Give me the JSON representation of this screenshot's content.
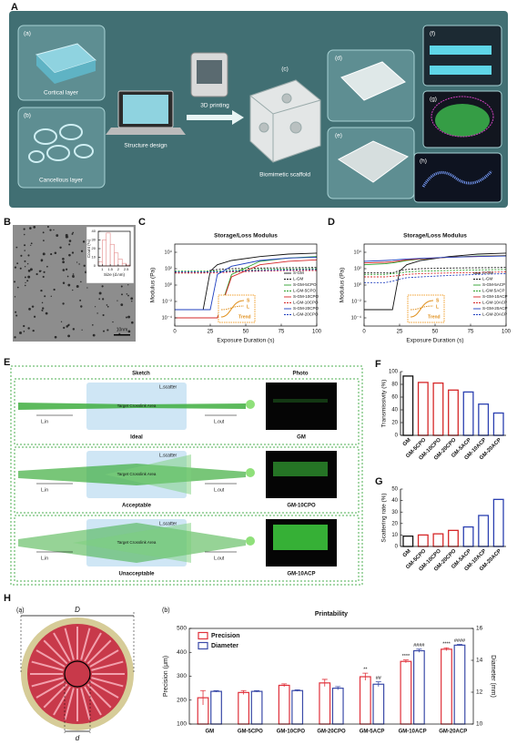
{
  "panel_a": {
    "label": "A",
    "items": [
      {
        "tag": "(a)",
        "caption": "Cortical layer"
      },
      {
        "tag": "(b)",
        "caption": "Cancellous layer"
      }
    ],
    "design": "Structure design",
    "printing": "3D printing",
    "scaffold_tag": "(c)",
    "scaffold": "Biomimetic scaffold",
    "views": [
      "(d)",
      "(e)",
      "(f)",
      "(g)",
      "(h)"
    ]
  },
  "panel_b": {
    "label": "B",
    "scale_bar": "10nm"
  },
  "panel_e": {
    "label": "E",
    "sketch": "Sketch",
    "photo": "Photo",
    "l_in": "L.in",
    "l_out": "L.out",
    "l_scatter": "L.scatter",
    "area": "Target Crosslink Area",
    "rows": [
      {
        "name": "Ideal",
        "sample": "GM"
      },
      {
        "name": "Acceptable",
        "sample": "GM-10CPO"
      },
      {
        "name": "Unacceptable",
        "sample": "GM-10ACP"
      }
    ]
  },
  "panel_h": {
    "label": "H",
    "image_tag": "(a)",
    "outer": "D",
    "inner": "d"
  },
  "chart_data": [
    {
      "type": "histogram",
      "xlabel": "Size (d.nm)",
      "ylabel": "Count (%)",
      "bins": [
        0.75,
        1,
        1.25,
        1.5,
        1.75,
        2,
        2.25,
        2.5,
        2.75
      ],
      "values": [
        5,
        30,
        38,
        25,
        15,
        8,
        3,
        1
      ],
      "color": "#e38a8a",
      "xlim": [
        0.75,
        2.75
      ],
      "xticks": [
        1,
        1.5,
        2,
        2.5
      ],
      "ylim": [
        0,
        40
      ],
      "yticks": [
        0,
        10,
        20,
        30,
        40
      ]
    },
    {
      "type": "line",
      "label": "C",
      "title": "Storage/Loss Modulus",
      "xlabel": "Exposure Duration (s)",
      "ylabel": "Modulus (Pa)",
      "log_y": true,
      "legend": "lower right",
      "inset": {
        "s": "S",
        "l": "L",
        "trend": "Trend"
      },
      "x": [
        0,
        15,
        20,
        25,
        30,
        40,
        60,
        80,
        100
      ],
      "series": [
        {
          "name": "S-GM",
          "color": "#111111",
          "dashed": false,
          "values": [
            0.001,
            0.001,
            0.001,
            50,
            300,
            1000,
            3000,
            6000,
            8000
          ]
        },
        {
          "name": "L-GM",
          "color": "#111111",
          "dashed": true,
          "values": [
            30,
            30,
            30,
            60,
            80,
            100,
            120,
            130,
            140
          ]
        },
        {
          "name": "S-GM-5CPO",
          "color": "#2ca02c",
          "dashed": false,
          "values": [
            0.0001,
            0.0001,
            0.0001,
            0.0001,
            0.0001,
            20,
            800,
            2000,
            3000
          ]
        },
        {
          "name": "L-GM-5CPO",
          "color": "#2ca02c",
          "dashed": true,
          "values": [
            50,
            50,
            50,
            50,
            50,
            60,
            80,
            90,
            100
          ]
        },
        {
          "name": "S-GM-10CPO",
          "color": "#d62728",
          "dashed": false,
          "values": [
            0.0001,
            0.0001,
            0.0001,
            0.0001,
            0.0001,
            10,
            300,
            800,
            1200
          ]
        },
        {
          "name": "L-GM-10CPO",
          "color": "#d62728",
          "dashed": true,
          "values": [
            30,
            30,
            30,
            30,
            30,
            40,
            50,
            60,
            60
          ]
        },
        {
          "name": "S-GM-20CPO",
          "color": "#1f3fbf",
          "dashed": false,
          "values": [
            0.001,
            0.001,
            0.001,
            0.001,
            20,
            200,
            1000,
            2000,
            2500
          ]
        },
        {
          "name": "L-GM-20CPO",
          "color": "#1f3fbf",
          "dashed": true,
          "values": [
            40,
            40,
            40,
            40,
            40,
            50,
            60,
            70,
            80
          ]
        }
      ],
      "xlim": [
        0,
        100
      ],
      "xticks": [
        0,
        25,
        50,
        75,
        100
      ],
      "ylim": [
        1e-05,
        100000
      ],
      "yticks": [
        {
          "value": 0.0001,
          "label": "10⁻⁴"
        },
        {
          "value": 0.01,
          "label": "10⁻²"
        },
        {
          "value": 1,
          "label": "10⁰"
        },
        {
          "value": 100,
          "label": "10²"
        },
        {
          "value": 10000,
          "label": "10⁴"
        }
      ]
    },
    {
      "type": "line",
      "label": "D",
      "title": "Storage/Loss Modulus",
      "xlabel": "Exposure Duration (s)",
      "ylabel": "Modulus (Pa)",
      "log_y": true,
      "legend": "lower right",
      "inset": {
        "s": "S",
        "l": "L",
        "trend": "Trend"
      },
      "x": [
        0,
        15,
        20,
        25,
        30,
        40,
        60,
        80,
        100
      ],
      "series": [
        {
          "name": "S-GM",
          "color": "#111111",
          "dashed": false,
          "values": [
            0.001,
            0.001,
            0.001,
            50,
            300,
            1000,
            3000,
            6000,
            8000
          ]
        },
        {
          "name": "L-GM",
          "color": "#111111",
          "dashed": true,
          "values": [
            30,
            30,
            30,
            60,
            80,
            100,
            120,
            130,
            140
          ]
        },
        {
          "name": "S-GM-5ACP",
          "color": "#2ca02c",
          "dashed": false,
          "values": [
            300,
            400,
            500,
            700,
            1000,
            1500,
            2500,
            3500,
            4000
          ]
        },
        {
          "name": "L-GM-5ACP",
          "color": "#2ca02c",
          "dashed": true,
          "values": [
            20,
            20,
            25,
            30,
            40,
            50,
            60,
            70,
            80
          ]
        },
        {
          "name": "S-GM-10ACP",
          "color": "#d62728",
          "dashed": false,
          "values": [
            500,
            600,
            700,
            900,
            1200,
            1600,
            2500,
            3200,
            3800
          ]
        },
        {
          "name": "L-GM-10ACP",
          "color": "#d62728",
          "dashed": true,
          "values": [
            10,
            10,
            12,
            15,
            20,
            25,
            30,
            35,
            40
          ]
        },
        {
          "name": "S-GM-20ACP",
          "color": "#1f3fbf",
          "dashed": false,
          "values": [
            800,
            1000,
            1100,
            1300,
            1500,
            1800,
            2500,
            3000,
            3500
          ]
        },
        {
          "name": "L-GM-20ACP",
          "color": "#1f3fbf",
          "dashed": true,
          "values": [
            2,
            2,
            3,
            5,
            8,
            10,
            15,
            20,
            25
          ]
        }
      ],
      "xlim": [
        0,
        100
      ],
      "xticks": [
        0,
        25,
        50,
        75,
        100
      ],
      "ylim": [
        1e-05,
        100000
      ],
      "yticks": [
        {
          "value": 0.0001,
          "label": "10⁻⁴"
        },
        {
          "value": 0.01,
          "label": "10⁻²"
        },
        {
          "value": 1,
          "label": "10⁰"
        },
        {
          "value": 100,
          "label": "10²"
        },
        {
          "value": 10000,
          "label": "10⁴"
        }
      ]
    },
    {
      "type": "bar",
      "label": "F",
      "ylabel": "Transmissivity (%)",
      "categories": [
        "GM",
        "GM-5CPO",
        "GM-10CPO",
        "GM-20CPO",
        "GM-5ACP",
        "GM-10ACP",
        "GM-20ACP"
      ],
      "values": [
        93,
        83,
        82,
        71,
        68,
        49,
        35
      ],
      "colors": [
        "#111111",
        "#d62728",
        "#d62728",
        "#d62728",
        "#2a3fb0",
        "#2a3fb0",
        "#2a3fb0"
      ],
      "ylim": [
        0,
        100
      ],
      "yticks": [
        0,
        20,
        40,
        60,
        80,
        100
      ]
    },
    {
      "type": "bar",
      "label": "G",
      "ylabel": "Scattering rate (%)",
      "categories": [
        "GM",
        "GM-5CPO",
        "GM-10CPO",
        "GM-20CPO",
        "GM-5ACP",
        "GM-10ACP",
        "GM-20ACP"
      ],
      "values": [
        9,
        10,
        11,
        14,
        17,
        27,
        41
      ],
      "colors": [
        "#111111",
        "#d62728",
        "#d62728",
        "#d62728",
        "#2a3fb0",
        "#2a3fb0",
        "#2a3fb0"
      ],
      "ylim": [
        0,
        50
      ],
      "yticks": [
        0,
        10,
        20,
        30,
        40,
        50
      ]
    },
    {
      "type": "grouped_bar",
      "label": "(b)",
      "title": "Printability",
      "ylabel": "Precision (μm)",
      "y2label": "Diameter (mm)",
      "legend": "upper left",
      "categories": [
        "GM",
        "GM-5CPO",
        "GM-10CPO",
        "GM-20CPO",
        "GM-5ACP",
        "GM-10ACP",
        "GM-20ACP"
      ],
      "series": [
        {
          "name": "Precision",
          "color": "#e0303a",
          "values": [
            210,
            232,
            262,
            272,
            298,
            362,
            413
          ],
          "errors": [
            30,
            8,
            6,
            15,
            15,
            6,
            6
          ],
          "annotations": [
            null,
            null,
            null,
            null,
            "**",
            "****",
            "****"
          ]
        },
        {
          "name": "Diameter",
          "color": "#3a4aa8",
          "axis": "y2",
          "values": [
            12.05,
            12.05,
            12.1,
            12.25,
            12.5,
            14.6,
            14.95
          ],
          "errors": [
            0.05,
            0.05,
            0.05,
            0.1,
            0.15,
            0.1,
            0.05
          ],
          "annotations": [
            null,
            null,
            null,
            null,
            "##",
            "####",
            "####"
          ]
        }
      ],
      "ylim": [
        100,
        500
      ],
      "yticks": [
        100,
        200,
        300,
        400,
        500
      ],
      "y2lim": [
        10,
        16
      ],
      "y2ticks": [
        10,
        12,
        14,
        16
      ]
    }
  ]
}
